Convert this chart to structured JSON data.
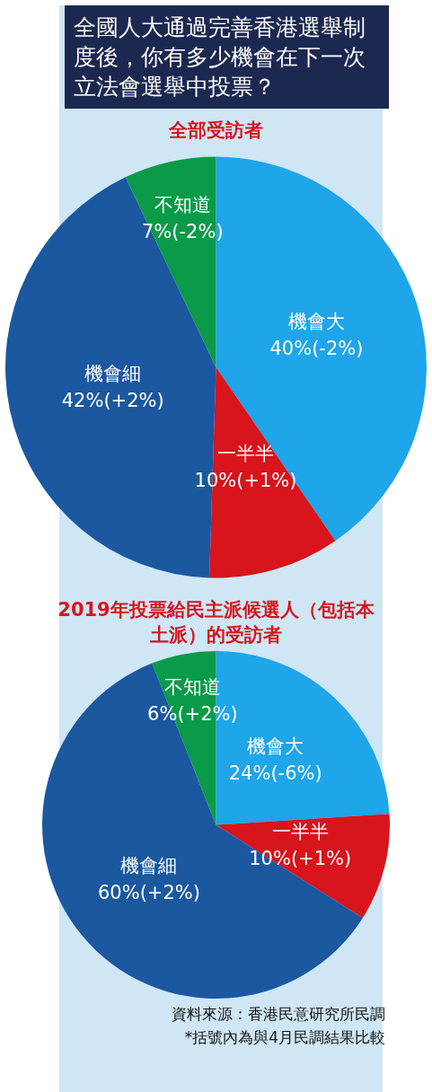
{
  "chart_data": [
    {
      "type": "pie",
      "title": "全國人大通過完善香港選舉制度後，你有多少機會在下一次立法會選舉中投票？",
      "subtitle": "全部受訪者",
      "categories": [
        "機會大",
        "一半半",
        "機會細",
        "不知道"
      ],
      "values": [
        40,
        10,
        42,
        7
      ],
      "colors": [
        "#1ea5ea",
        "#d8141c",
        "#1b58a0",
        "#0b9a48"
      ],
      "value_labels": [
        "40%(-2%)",
        "10%(+1%)",
        "42%(+2%)",
        "7%(-2%)"
      ],
      "legend": false
    },
    {
      "type": "pie",
      "title": "2019年投票給民主派候選人（包括本土派）的受訪者",
      "categories": [
        "機會大",
        "一半半",
        "機會細",
        "不知道"
      ],
      "values": [
        24,
        10,
        60,
        6
      ],
      "colors": [
        "#1ea5ea",
        "#d8141c",
        "#1b58a0",
        "#0b9a48"
      ],
      "value_labels": [
        "24%(-6%)",
        "10%(+1%)",
        "60%(+2%)",
        "6%(+2%)"
      ],
      "legend": false,
      "annotations": [
        "資料來源：香港民意研究所民調",
        "*括號內為與4月民調結果比較"
      ]
    }
  ]
}
